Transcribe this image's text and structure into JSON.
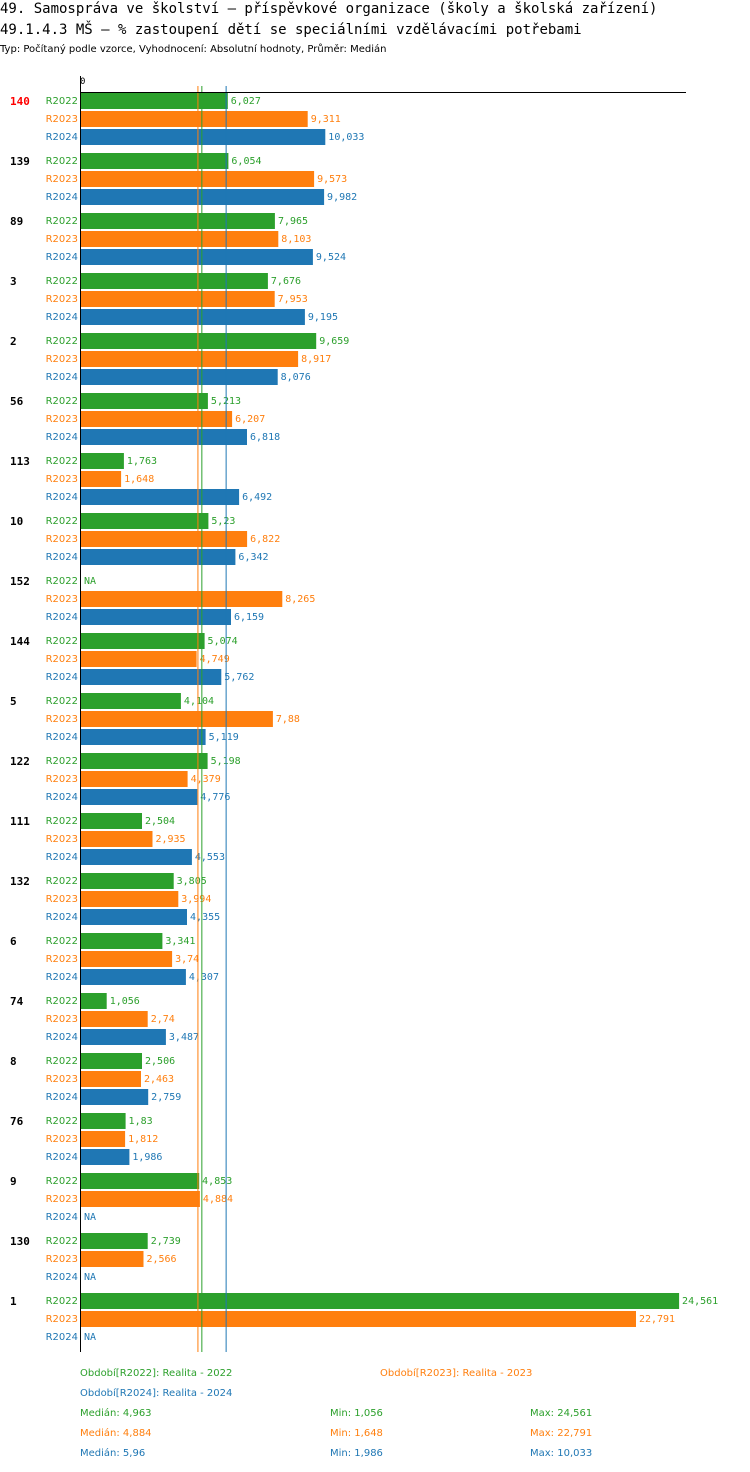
{
  "header": {
    "title_line1": "49. Samospráva ve školství – příspěvkové organizace (školy a školská zařízení)",
    "title_line2": "49.1.4.3 MŠ – % zastoupení dětí se speciálními vzdělávacími potřebami",
    "subtitle": "Typ: Počítaný podle vzorce, Vyhodnocení: Absolutní hodnoty, Průměr: Medián"
  },
  "colors": {
    "R2022": "#2ca02c",
    "R2023": "#ff7f0e",
    "R2024": "#1f77b4",
    "highlight": "#ff0000"
  },
  "chart_data": {
    "type": "bar",
    "orientation": "horizontal",
    "axis_zero_label": "0",
    "xlim": [
      0,
      24.561
    ],
    "highlighted_category": "140",
    "categories": [
      "140",
      "139",
      "89",
      "3",
      "2",
      "56",
      "113",
      "10",
      "152",
      "144",
      "5",
      "122",
      "111",
      "132",
      "6",
      "74",
      "8",
      "76",
      "9",
      "130",
      "1"
    ],
    "series": [
      {
        "name": "R2022",
        "values": [
          6.027,
          6.054,
          7.965,
          7.676,
          9.659,
          5.213,
          1.763,
          5.23,
          null,
          5.074,
          4.104,
          5.198,
          2.504,
          3.805,
          3.341,
          1.056,
          2.506,
          1.83,
          4.853,
          2.739,
          24.561
        ],
        "labels": [
          "6,027",
          "6,054",
          "7,965",
          "7,676",
          "9,659",
          "5,213",
          "1,763",
          "5,23",
          "NA",
          "5,074",
          "4,104",
          "5,198",
          "2,504",
          "3,805",
          "3,341",
          "1,056",
          "2,506",
          "1,83",
          "4,853",
          "2,739",
          "24,561"
        ]
      },
      {
        "name": "R2023",
        "values": [
          9.311,
          9.573,
          8.103,
          7.953,
          8.917,
          6.207,
          1.648,
          6.822,
          8.265,
          4.749,
          7.88,
          4.379,
          2.935,
          3.994,
          3.74,
          2.74,
          2.463,
          1.812,
          4.884,
          2.566,
          22.791
        ],
        "labels": [
          "9,311",
          "9,573",
          "8,103",
          "7,953",
          "8,917",
          "6,207",
          "1,648",
          "6,822",
          "8,265",
          "4,749",
          "7,88",
          "4,379",
          "2,935",
          "3,994",
          "3,74",
          "2,74",
          "2,463",
          "1,812",
          "4,884",
          "2,566",
          "22,791"
        ]
      },
      {
        "name": "R2024",
        "values": [
          10.033,
          9.982,
          9.524,
          9.195,
          8.076,
          6.818,
          6.492,
          6.342,
          6.159,
          5.762,
          5.119,
          4.776,
          4.553,
          4.355,
          4.307,
          3.487,
          2.759,
          1.986,
          null,
          null,
          null
        ],
        "labels": [
          "10,033",
          "9,982",
          "9,524",
          "9,195",
          "8,076",
          "6,818",
          "6,492",
          "6,342",
          "6,159",
          "5,762",
          "5,119",
          "4,776",
          "4,553",
          "4,355",
          "4,307",
          "3,487",
          "2,759",
          "1,986",
          "NA",
          "NA",
          "NA"
        ]
      }
    ],
    "median_lines": {
      "R2022": 4.963,
      "R2023": 4.884,
      "R2024": 5.96
    }
  },
  "legend": {
    "period_r2022": "Období[R2022]: Realita - 2022",
    "period_r2023": "Období[R2023]: Realita - 2023",
    "period_r2024": "Období[R2024]: Realita - 2024",
    "stats": [
      {
        "median": "Medián: 4,963",
        "min": "Min: 1,056",
        "max": "Max: 24,561"
      },
      {
        "median": "Medián: 4,884",
        "min": "Min: 1,648",
        "max": "Max: 22,791"
      },
      {
        "median": "Medián: 5,96",
        "min": "Min: 1,986",
        "max": "Max: 10,033"
      }
    ]
  }
}
